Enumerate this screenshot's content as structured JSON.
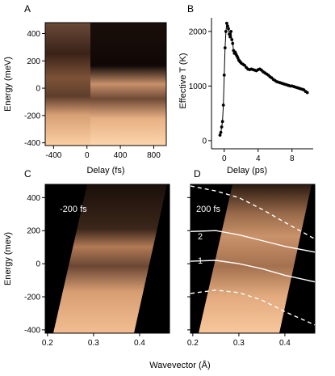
{
  "chart_data": [
    {
      "panel": "A",
      "type": "heatmap",
      "xlabel": "Delay (fs)",
      "ylabel": "Energy (meV)",
      "xlim": [
        -500,
        950
      ],
      "ylim": [
        -420,
        480
      ],
      "xticks": [
        -400,
        0,
        400,
        800
      ],
      "yticks": [
        -400,
        -200,
        0,
        200,
        400
      ],
      "colors": {
        "dark": "#120806",
        "mid": "#8a5a3e",
        "bright": "#f6c49a"
      }
    },
    {
      "panel": "B",
      "type": "scatter",
      "xlabel": "Delay (ps)",
      "ylabel": "Effective T (K)",
      "xlim": [
        -1.5,
        10.5
      ],
      "ylim": [
        -150,
        2250
      ],
      "xticks": [
        0,
        4,
        8
      ],
      "yticks": [
        0,
        1000,
        2000
      ],
      "series": [
        {
          "x": [
            -0.5,
            -0.4,
            -0.3,
            -0.2,
            -0.1,
            0.0,
            0.1,
            0.2,
            0.3,
            0.4,
            0.5,
            0.6,
            0.7,
            0.8,
            0.9,
            1.0,
            1.1,
            1.2,
            1.3,
            1.4,
            1.5,
            1.6,
            1.7,
            1.8,
            1.9,
            2.0,
            2.2,
            2.4,
            2.6,
            2.8,
            3.0,
            3.2,
            3.4,
            3.6,
            3.8,
            4.0,
            4.2,
            4.4,
            4.6,
            4.8,
            5.0,
            5.2,
            5.4,
            5.6,
            5.8,
            6.0,
            6.2,
            6.4,
            6.6,
            6.8,
            7.0,
            7.2,
            7.4,
            7.6,
            7.8,
            8.0,
            8.2,
            8.4,
            8.6,
            8.8,
            9.0,
            9.2,
            9.4,
            9.6,
            9.8
          ],
          "y": [
            100,
            150,
            250,
            350,
            650,
            1200,
            1700,
            2000,
            2150,
            2100,
            2050,
            1950,
            1900,
            2000,
            1850,
            1780,
            1650,
            1600,
            1620,
            1580,
            1550,
            1520,
            1480,
            1460,
            1440,
            1420,
            1400,
            1380,
            1340,
            1310,
            1300,
            1310,
            1300,
            1290,
            1280,
            1300,
            1310,
            1290,
            1260,
            1240,
            1220,
            1200,
            1170,
            1150,
            1120,
            1100,
            1080,
            1070,
            1060,
            1050,
            1040,
            1030,
            1020,
            1010,
            1000,
            1000,
            990,
            980,
            970,
            960,
            950,
            940,
            930,
            900,
            880
          ]
        }
      ]
    },
    {
      "panel": "C",
      "type": "heatmap",
      "annotation": "-200 fs",
      "ylabel": "Energy (mev)",
      "xlim": [
        0.195,
        0.465
      ],
      "ylim": [
        -420,
        480
      ],
      "xticks": [
        0.2,
        0.3,
        0.4
      ],
      "yticks": [
        -400,
        -200,
        0,
        200,
        400
      ]
    },
    {
      "panel": "D",
      "type": "heatmap",
      "annotation": "200 fs",
      "xlim": [
        0.195,
        0.465
      ],
      "ylim": [
        -420,
        480
      ],
      "xticks": [
        0.2,
        0.3,
        0.4
      ],
      "curves": [
        {
          "name": "2",
          "style": "solid",
          "x": [
            0.195,
            0.25,
            0.3,
            0.35,
            0.4,
            0.465
          ],
          "y": [
            195,
            200,
            175,
            140,
            105,
            70
          ]
        },
        {
          "name": "1",
          "style": "solid",
          "x": [
            0.195,
            0.25,
            0.3,
            0.35,
            0.4,
            0.465
          ],
          "y": [
            15,
            20,
            0,
            -30,
            -70,
            -110
          ]
        },
        {
          "name": "",
          "style": "dashed",
          "x": [
            0.195,
            0.25,
            0.3,
            0.35,
            0.4,
            0.465
          ],
          "y": [
            470,
            440,
            400,
            330,
            250,
            150
          ]
        },
        {
          "name": "",
          "style": "dashed",
          "x": [
            0.195,
            0.25,
            0.3,
            0.35,
            0.4,
            0.465
          ],
          "y": [
            -180,
            -160,
            -175,
            -220,
            -290,
            -370
          ]
        }
      ]
    }
  ],
  "shared": {
    "xlabel_bottom": "Wavevector (Å)"
  }
}
